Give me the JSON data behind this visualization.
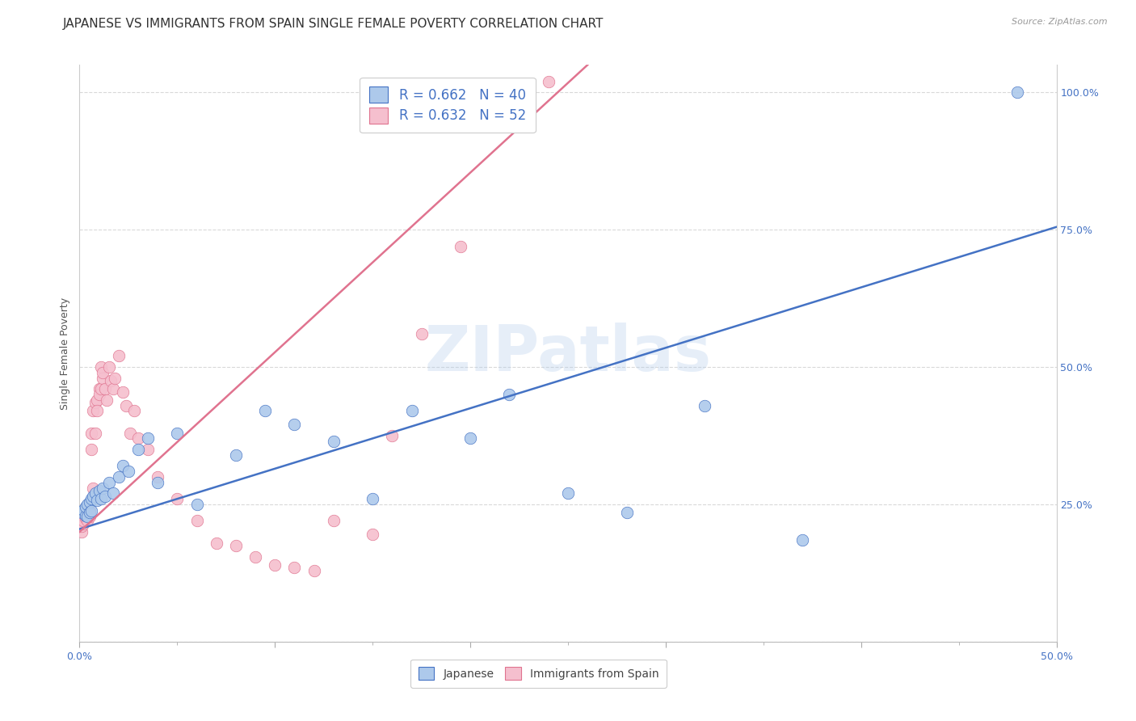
{
  "title": "JAPANESE VS IMMIGRANTS FROM SPAIN SINGLE FEMALE POVERTY CORRELATION CHART",
  "source": "Source: ZipAtlas.com",
  "ylabel": "Single Female Poverty",
  "x_min": 0.0,
  "x_max": 0.5,
  "y_min": 0.0,
  "y_max": 1.05,
  "legend_label_japanese": "R = 0.662   N = 40",
  "legend_label_spain": "R = 0.632   N = 52",
  "bottom_label_japanese": "Japanese",
  "bottom_label_spain": "Immigrants from Spain",
  "japanese_color": "#adc9eb",
  "spain_color": "#f5bfce",
  "japanese_line_color": "#4472c4",
  "spain_line_color": "#e0738f",
  "watermark": "ZIPatlas",
  "background_color": "#ffffff",
  "grid_color": "#d9d9d9",
  "title_fontsize": 11,
  "axis_label_fontsize": 9,
  "tick_fontsize": 9,
  "legend_fontsize": 12,
  "japanese_x": [
    0.001,
    0.002,
    0.003,
    0.003,
    0.004,
    0.004,
    0.005,
    0.005,
    0.006,
    0.006,
    0.007,
    0.008,
    0.009,
    0.01,
    0.011,
    0.012,
    0.013,
    0.015,
    0.017,
    0.02,
    0.022,
    0.025,
    0.03,
    0.035,
    0.04,
    0.05,
    0.06,
    0.08,
    0.095,
    0.11,
    0.13,
    0.15,
    0.17,
    0.2,
    0.22,
    0.25,
    0.28,
    0.32,
    0.37,
    0.48
  ],
  "japanese_y": [
    0.235,
    0.24,
    0.23,
    0.245,
    0.228,
    0.25,
    0.235,
    0.255,
    0.238,
    0.26,
    0.265,
    0.27,
    0.258,
    0.275,
    0.26,
    0.28,
    0.265,
    0.29,
    0.27,
    0.3,
    0.32,
    0.31,
    0.35,
    0.37,
    0.29,
    0.38,
    0.25,
    0.34,
    0.42,
    0.395,
    0.365,
    0.26,
    0.42,
    0.37,
    0.45,
    0.27,
    0.235,
    0.43,
    0.185,
    1.0
  ],
  "spain_x": [
    0.001,
    0.001,
    0.002,
    0.002,
    0.003,
    0.003,
    0.004,
    0.004,
    0.005,
    0.005,
    0.006,
    0.006,
    0.007,
    0.007,
    0.008,
    0.008,
    0.009,
    0.009,
    0.01,
    0.01,
    0.011,
    0.011,
    0.012,
    0.012,
    0.013,
    0.014,
    0.015,
    0.016,
    0.017,
    0.018,
    0.02,
    0.022,
    0.024,
    0.026,
    0.028,
    0.03,
    0.035,
    0.04,
    0.05,
    0.06,
    0.07,
    0.08,
    0.09,
    0.1,
    0.11,
    0.12,
    0.13,
    0.15,
    0.16,
    0.175,
    0.195,
    0.24
  ],
  "spain_y": [
    0.2,
    0.21,
    0.215,
    0.22,
    0.225,
    0.23,
    0.22,
    0.235,
    0.228,
    0.24,
    0.35,
    0.38,
    0.28,
    0.42,
    0.38,
    0.435,
    0.44,
    0.42,
    0.46,
    0.45,
    0.5,
    0.46,
    0.48,
    0.49,
    0.46,
    0.44,
    0.5,
    0.475,
    0.46,
    0.48,
    0.52,
    0.455,
    0.43,
    0.38,
    0.42,
    0.37,
    0.35,
    0.3,
    0.26,
    0.22,
    0.18,
    0.175,
    0.155,
    0.14,
    0.135,
    0.13,
    0.22,
    0.195,
    0.375,
    0.56,
    0.72,
    1.02
  ],
  "jp_line_x0": 0.0,
  "jp_line_y0": 0.205,
  "jp_line_x1": 0.5,
  "jp_line_y1": 0.755,
  "sp_line_x0": 0.0,
  "sp_line_y0": 0.2,
  "sp_line_x1": 0.26,
  "sp_line_y1": 1.05
}
